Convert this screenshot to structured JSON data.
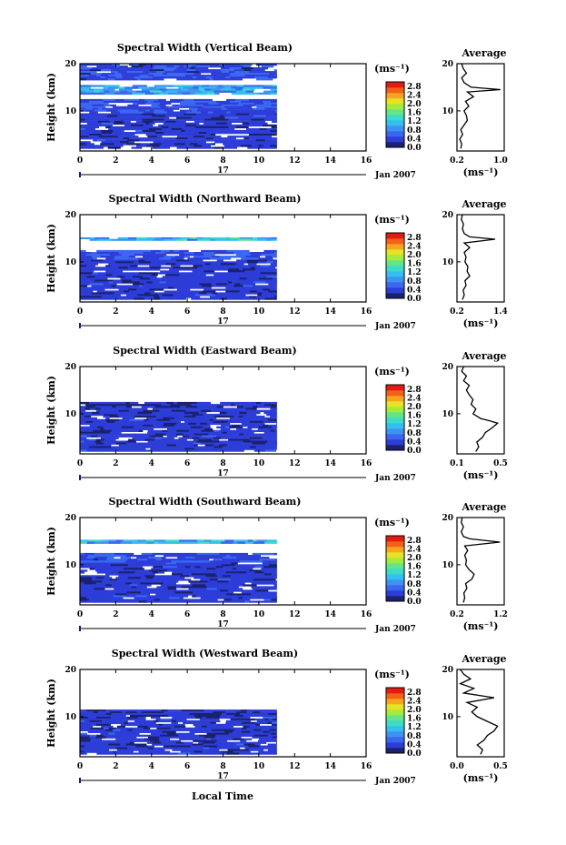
{
  "figure": {
    "x_axis_label": "Local Time",
    "date_label": "Jan 2007",
    "day_label": "17",
    "y_axis_label": "Height (km)",
    "unit_label": "(ms⁻¹)",
    "average_title": "Average",
    "average_unit_label": "(ms⁻¹)"
  },
  "colors": {
    "colormap": [
      "#1a2270",
      "#2d3dd8",
      "#3b67f0",
      "#3f93f0",
      "#33bff0",
      "#3ddcc8",
      "#63e58a",
      "#a6eb3c",
      "#e6e324",
      "#f7a520",
      "#f46017",
      "#e21c12"
    ]
  },
  "chart_data": [
    {
      "type": "heatmap",
      "title": "Spectral Width (Vertical Beam)",
      "xlabel": "Local Time",
      "ylabel": "Height (km)",
      "xlim": [
        0,
        16
      ],
      "ylim": [
        1.5,
        20
      ],
      "x_ticks": [
        "0",
        "2",
        "4",
        "6",
        "8",
        "10",
        "12",
        "14",
        "16"
      ],
      "y_ticks": [
        "10",
        "20"
      ],
      "data_x_range": [
        0,
        11
      ],
      "colorbar": {
        "label": "(ms⁻¹)",
        "ticks": [
          "0.0",
          "0.4",
          "0.8",
          "1.2",
          "1.6",
          "2.0",
          "2.4",
          "2.8"
        ],
        "range": [
          0,
          3.0
        ]
      },
      "profile": [
        {
          "h": [
            2,
            9.5
          ],
          "v": 0.35
        },
        {
          "h": [
            9.5,
            12.5
          ],
          "v": 0.45
        },
        {
          "h": [
            13.5,
            15.5
          ],
          "v": 0.9
        },
        {
          "h": [
            16.5,
            20
          ],
          "v": 0.4
        }
      ],
      "average": {
        "title": "Average",
        "xlabel": "(ms⁻¹)",
        "xlim": [
          0.2,
          1.2
        ],
        "ylim": [
          1.5,
          20
        ],
        "x_ticks": [
          "0.2",
          "1.0"
        ],
        "y_ticks": [
          "10",
          "20"
        ],
        "points": [
          [
            0.28,
            2
          ],
          [
            0.3,
            3
          ],
          [
            0.26,
            4
          ],
          [
            0.32,
            5
          ],
          [
            0.28,
            6
          ],
          [
            0.35,
            7
          ],
          [
            0.42,
            8
          ],
          [
            0.4,
            9
          ],
          [
            0.35,
            10
          ],
          [
            0.45,
            11
          ],
          [
            0.38,
            12
          ],
          [
            0.55,
            13
          ],
          [
            0.42,
            14
          ],
          [
            1.12,
            14.5
          ],
          [
            0.5,
            15
          ],
          [
            0.35,
            16
          ],
          [
            0.3,
            17
          ],
          [
            0.4,
            18
          ],
          [
            0.33,
            19
          ],
          [
            0.3,
            20
          ]
        ]
      }
    },
    {
      "type": "heatmap",
      "title": "Spectral Width (Northward Beam)",
      "xlabel": "Local Time",
      "ylabel": "Height (km)",
      "xlim": [
        0,
        16
      ],
      "ylim": [
        1.5,
        20
      ],
      "x_ticks": [
        "0",
        "2",
        "4",
        "6",
        "8",
        "10",
        "12",
        "14",
        "16"
      ],
      "y_ticks": [
        "10",
        "20"
      ],
      "data_x_range": [
        0,
        11
      ],
      "colorbar": {
        "label": "(ms⁻¹)",
        "ticks": [
          "0.0",
          "0.4",
          "0.8",
          "1.2",
          "1.6",
          "2.0",
          "2.4",
          "2.8"
        ],
        "range": [
          0,
          3.0
        ]
      },
      "profile": [
        {
          "h": [
            2,
            10.5
          ],
          "v": 0.35
        },
        {
          "h": [
            10.5,
            12.5
          ],
          "v": 0.5
        },
        {
          "h": [
            14.5,
            15.2
          ],
          "v": 1.1
        }
      ],
      "average": {
        "title": "Average",
        "xlabel": "(ms⁻¹)",
        "xlim": [
          0.1,
          1.4
        ],
        "ylim": [
          1.5,
          20
        ],
        "x_ticks": [
          "0.2",
          "1.4"
        ],
        "y_ticks": [
          "10",
          "20"
        ],
        "points": [
          [
            0.25,
            2
          ],
          [
            0.3,
            3
          ],
          [
            0.27,
            4
          ],
          [
            0.35,
            5
          ],
          [
            0.32,
            6
          ],
          [
            0.45,
            7
          ],
          [
            0.38,
            8
          ],
          [
            0.4,
            9
          ],
          [
            0.32,
            10
          ],
          [
            0.35,
            11
          ],
          [
            0.3,
            12
          ],
          [
            0.45,
            13
          ],
          [
            0.3,
            14
          ],
          [
            1.15,
            14.8
          ],
          [
            0.45,
            15.3
          ],
          [
            0.3,
            16
          ],
          [
            0.25,
            17
          ],
          [
            0.28,
            18
          ],
          [
            0.22,
            19
          ],
          [
            0.25,
            20
          ]
        ]
      }
    },
    {
      "type": "heatmap",
      "title": "Spectral Width (Eastward Beam)",
      "xlabel": "Local Time",
      "ylabel": "Height (km)",
      "xlim": [
        0,
        16
      ],
      "ylim": [
        1.5,
        20
      ],
      "x_ticks": [
        "0",
        "2",
        "4",
        "6",
        "8",
        "10",
        "12",
        "14",
        "16"
      ],
      "y_ticks": [
        "10",
        "20"
      ],
      "data_x_range": [
        0,
        11
      ],
      "colorbar": {
        "label": "(ms⁻¹)",
        "ticks": [
          "0.0",
          "0.4",
          "0.8",
          "1.2",
          "1.6",
          "2.0",
          "2.4",
          "2.8"
        ],
        "range": [
          0,
          3.0
        ]
      },
      "profile": [
        {
          "h": [
            2,
            10
          ],
          "v": 0.35
        },
        {
          "h": [
            10,
            12.5
          ],
          "v": 0.3
        }
      ],
      "average": {
        "title": "Average",
        "xlabel": "(ms⁻¹)",
        "xlim": [
          0.05,
          0.55
        ],
        "ylim": [
          1.5,
          20
        ],
        "x_ticks": [
          "0.1",
          "0.5"
        ],
        "y_ticks": [
          "10",
          "20"
        ],
        "points": [
          [
            0.25,
            2
          ],
          [
            0.28,
            3
          ],
          [
            0.26,
            4
          ],
          [
            0.32,
            5
          ],
          [
            0.35,
            6
          ],
          [
            0.42,
            7
          ],
          [
            0.48,
            8
          ],
          [
            0.4,
            8.5
          ],
          [
            0.3,
            9
          ],
          [
            0.22,
            10
          ],
          [
            0.25,
            11
          ],
          [
            0.2,
            12
          ],
          [
            0.22,
            13
          ],
          [
            0.18,
            14
          ],
          [
            0.15,
            15
          ],
          [
            0.18,
            16
          ],
          [
            0.12,
            17
          ],
          [
            0.15,
            18
          ],
          [
            0.1,
            19
          ],
          [
            0.12,
            20
          ]
        ]
      }
    },
    {
      "type": "heatmap",
      "title": "Spectral Width (Southward Beam)",
      "xlabel": "Local Time",
      "ylabel": "Height (km)",
      "xlim": [
        0,
        16
      ],
      "ylim": [
        1.5,
        20
      ],
      "x_ticks": [
        "0",
        "2",
        "4",
        "6",
        "8",
        "10",
        "12",
        "14",
        "16"
      ],
      "y_ticks": [
        "10",
        "20"
      ],
      "data_x_range": [
        0,
        11
      ],
      "colorbar": {
        "label": "(ms⁻¹)",
        "ticks": [
          "0.0",
          "0.4",
          "0.8",
          "1.2",
          "1.6",
          "2.0",
          "2.4",
          "2.8"
        ],
        "range": [
          0,
          3.0
        ]
      },
      "profile": [
        {
          "h": [
            2,
            10.5
          ],
          "v": 0.35
        },
        {
          "h": [
            10.5,
            12.5
          ],
          "v": 0.45
        },
        {
          "h": [
            14.5,
            15.3
          ],
          "v": 1.0
        }
      ],
      "average": {
        "title": "Average",
        "xlabel": "(ms⁻¹)",
        "xlim": [
          0.1,
          1.2
        ],
        "ylim": [
          1.5,
          20
        ],
        "x_ticks": [
          "0.2",
          "1.2"
        ],
        "y_ticks": [
          "10",
          "20"
        ],
        "points": [
          [
            0.25,
            2
          ],
          [
            0.28,
            3
          ],
          [
            0.26,
            4
          ],
          [
            0.33,
            5
          ],
          [
            0.3,
            6
          ],
          [
            0.45,
            7
          ],
          [
            0.5,
            8
          ],
          [
            0.38,
            9
          ],
          [
            0.3,
            10
          ],
          [
            0.32,
            11
          ],
          [
            0.28,
            12
          ],
          [
            0.35,
            13
          ],
          [
            0.28,
            14
          ],
          [
            1.1,
            14.8
          ],
          [
            0.4,
            15.5
          ],
          [
            0.25,
            16
          ],
          [
            0.2,
            17
          ],
          [
            0.25,
            18
          ],
          [
            0.2,
            19
          ],
          [
            0.22,
            20
          ]
        ]
      }
    },
    {
      "type": "heatmap",
      "title": "Spectral Width (Westward Beam)",
      "xlabel": "Local Time",
      "ylabel": "Height (km)",
      "xlim": [
        0,
        16
      ],
      "ylim": [
        1.5,
        20
      ],
      "x_ticks": [
        "0",
        "2",
        "4",
        "6",
        "8",
        "10",
        "12",
        "14",
        "16"
      ],
      "y_ticks": [
        "10",
        "20"
      ],
      "data_x_range": [
        0,
        11
      ],
      "colorbar": {
        "label": "(ms⁻¹)",
        "ticks": [
          "0.0",
          "0.4",
          "0.8",
          "1.2",
          "1.6",
          "2.0",
          "2.4",
          "2.8"
        ],
        "range": [
          0,
          3.0
        ]
      },
      "profile": [
        {
          "h": [
            2,
            10
          ],
          "v": 0.35
        },
        {
          "h": [
            10,
            11.5
          ],
          "v": 0.3
        }
      ],
      "average": {
        "title": "Average",
        "xlabel": "(ms⁻¹)",
        "xlim": [
          0.0,
          0.7
        ],
        "ylim": [
          1.5,
          20
        ],
        "x_ticks": [
          "0.0",
          "0.5"
        ],
        "y_ticks": [
          "10",
          "20"
        ],
        "points": [
          [
            0.35,
            2
          ],
          [
            0.38,
            3
          ],
          [
            0.3,
            4
          ],
          [
            0.4,
            5
          ],
          [
            0.45,
            6
          ],
          [
            0.55,
            7
          ],
          [
            0.6,
            8
          ],
          [
            0.45,
            9
          ],
          [
            0.3,
            10
          ],
          [
            0.22,
            11
          ],
          [
            0.3,
            12
          ],
          [
            0.15,
            13
          ],
          [
            0.55,
            14
          ],
          [
            0.1,
            15
          ],
          [
            0.25,
            16
          ],
          [
            0.05,
            17
          ],
          [
            0.2,
            18
          ],
          [
            0.1,
            19
          ],
          [
            0.05,
            20
          ]
        ]
      }
    }
  ]
}
